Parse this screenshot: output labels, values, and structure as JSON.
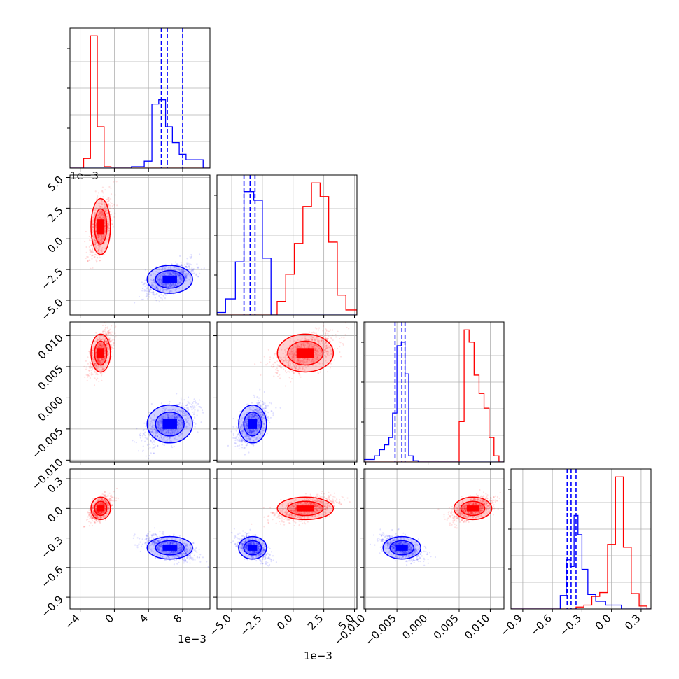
{
  "chart_data": {
    "type": "corner",
    "colors": {
      "red": "#ff0000",
      "blue": "#0000ff",
      "grid": "#b0b0b0",
      "frame": "#000000"
    },
    "grid": true,
    "params": [
      {
        "range": [
          -0.0052,
          0.0112
        ],
        "ticks": [
          -4,
          0,
          4,
          8
        ],
        "tick_labels": [
          "−4",
          "0",
          "4",
          "8"
        ],
        "multiplier": "1e−3"
      },
      {
        "range": [
          -0.0062,
          0.0052
        ],
        "ticks": [
          -5.0,
          -2.5,
          0.0,
          2.5,
          5.0
        ],
        "tick_labels": [
          "−5.0",
          "−2.5",
          "0.0",
          "2.5",
          "5.0"
        ],
        "multiplier": "1e−3"
      },
      {
        "range": [
          -0.0103,
          0.0122
        ],
        "ticks": [
          -0.01,
          -0.005,
          0.0,
          0.005,
          0.01
        ],
        "tick_labels": [
          "−0.010",
          "−0.005",
          "0.000",
          "0.005",
          "0.010"
        ],
        "multiplier": ""
      },
      {
        "range": [
          -1.02,
          0.4
        ],
        "ticks": [
          -0.9,
          -0.6,
          -0.3,
          0.0,
          0.3
        ],
        "tick_labels": [
          "−0.9",
          "−0.6",
          "−0.3",
          "0.0",
          "0.3"
        ],
        "multiplier": ""
      }
    ],
    "series": [
      {
        "color": "red",
        "centers": [
          -0.0016,
          0.001,
          0.0072,
          0.0
        ],
        "spread": [
          0.0006,
          0.0012,
          0.0016,
          0.06
        ]
      },
      {
        "color": "blue",
        "centers": [
          0.0065,
          -0.0033,
          -0.0042,
          -0.4
        ],
        "spread": [
          0.0014,
          0.0006,
          0.0016,
          0.06
        ]
      }
    ],
    "histograms": [
      {
        "red": {
          "edges": [
            -0.0052,
            -0.0036,
            -0.0028,
            -0.002,
            -0.0012,
            -0.0004,
            0.0004,
            0.0112
          ],
          "counts": [
            0,
            14,
            192,
            60,
            2,
            0,
            0
          ]
        },
        "blue": {
          "edges": [
            -0.0052,
            0.002,
            0.0035,
            0.0044,
            0.0052,
            0.006,
            0.0068,
            0.0076,
            0.0084,
            0.0094,
            0.0104,
            0.0112
          ],
          "counts": [
            0,
            2,
            10,
            93,
            99,
            60,
            37,
            20,
            12,
            12,
            0
          ]
        },
        "quantiles": [
          0.0055,
          0.0062,
          0.008
        ]
      },
      {
        "red": {
          "edges": [
            -0.0062,
            -0.0013,
            -0.0006,
            0.0001,
            0.0008,
            0.0015,
            0.0022,
            0.0029,
            0.0036,
            0.0043,
            0.0052
          ],
          "counts": [
            0,
            11,
            33,
            58,
            88,
            107,
            96,
            59,
            16,
            4
          ]
        },
        "blue": {
          "edges": [
            -0.0062,
            -0.0055,
            -0.0047,
            -0.004,
            -0.0032,
            -0.0025,
            -0.0018,
            0.0052
          ],
          "counts": [
            2,
            13,
            43,
            100,
            93,
            46,
            0
          ]
        },
        "quantiles": [
          -0.004,
          -0.0035,
          -0.0031
        ]
      },
      {
        "red": {
          "edges": [
            -0.0103,
            0.0022,
            0.005,
            0.0058,
            0.0066,
            0.0074,
            0.0082,
            0.009,
            0.0098,
            0.0106,
            0.0114,
            0.0122
          ],
          "counts": [
            0,
            0,
            33,
            108,
            98,
            71,
            56,
            44,
            20,
            5,
            0
          ]
        },
        "blue": {
          "edges": [
            -0.0103,
            -0.0086,
            -0.0078,
            -0.007,
            -0.0063,
            -0.0057,
            -0.005,
            -0.0043,
            -0.0037,
            -0.0031,
            -0.0024,
            -0.0016,
            0.0122
          ],
          "counts": [
            2,
            5,
            10,
            14,
            20,
            40,
            95,
            98,
            72,
            5,
            1,
            0
          ]
        },
        "quantiles": [
          -0.0053,
          -0.0042,
          -0.0037
        ]
      },
      {
        "red": {
          "edges": [
            -1.02,
            -0.36,
            -0.28,
            -0.2,
            -0.12,
            -0.04,
            0.04,
            0.12,
            0.2,
            0.28,
            0.36,
            0.4
          ],
          "counts": [
            0,
            2,
            4,
            13,
            17,
            67,
            137,
            64,
            16,
            3,
            0
          ]
        },
        "blue": {
          "edges": [
            -1.02,
            -0.52,
            -0.46,
            -0.42,
            -0.38,
            -0.34,
            -0.3,
            -0.24,
            -0.16,
            -0.06,
            0.1,
            0.4
          ],
          "counts": [
            0,
            14,
            51,
            44,
            97,
            77,
            41,
            15,
            8,
            4,
            0
          ]
        },
        "quantiles": [
          -0.45,
          -0.41,
          -0.36
        ]
      }
    ]
  }
}
